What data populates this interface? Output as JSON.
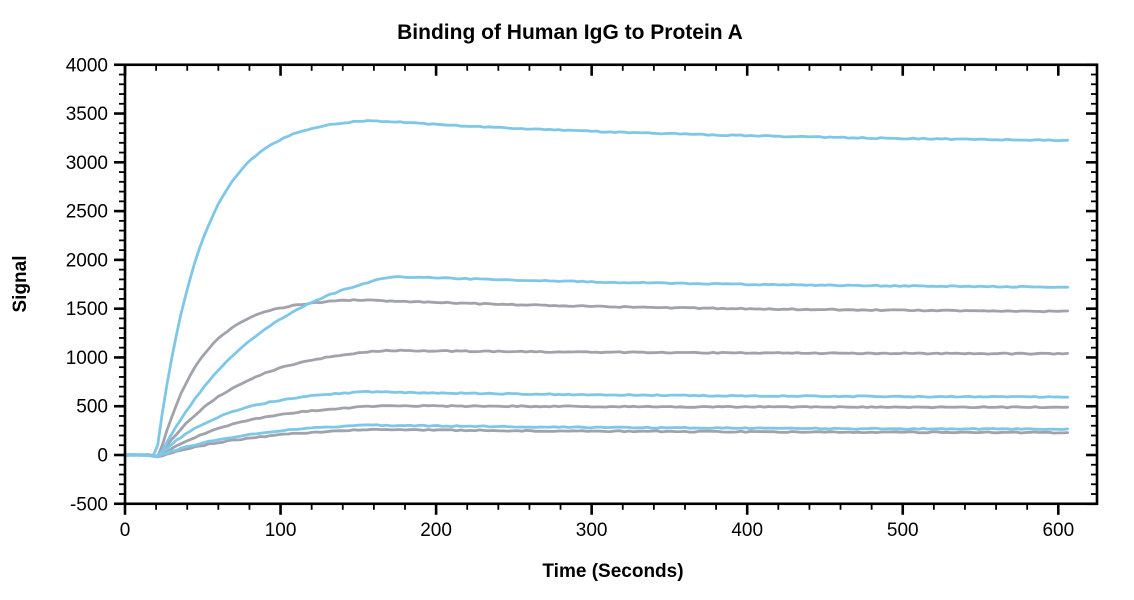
{
  "window": {
    "background_color": "#ffffff",
    "text_color": "#000000"
  },
  "chart_data": {
    "type": "line",
    "title": "Binding of Human IgG to Protein A",
    "xlabel": "Time (Seconds)",
    "ylabel": "Signal",
    "xlim": [
      0,
      625
    ],
    "ylim": [
      -500,
      4000
    ],
    "x_major_ticks": [
      0,
      100,
      200,
      300,
      400,
      500,
      600
    ],
    "x_minor_step": 20,
    "y_major_ticks": [
      -500,
      0,
      500,
      1000,
      1500,
      2000,
      2500,
      3000,
      3500,
      4000
    ],
    "y_minor_step": 100,
    "grid": false,
    "legend": null,
    "axis_color": "#000000",
    "series_colors": {
      "blue": "#7EC7E7",
      "gray": "#A0A3AB"
    },
    "curve_description": "Eight binding sensorgram traces: baseline at 0 until ~20 s, association rise to a peak near 150-170 s, then slow dissociation decay to 600 s",
    "series": [
      {
        "name": "curve-1-blue",
        "color": "blue",
        "hex": "#7EC7E7",
        "baseline": 0,
        "rise_start_s": 20,
        "k_assoc": 0.034,
        "peak_s": 158,
        "peak_signal": 3430,
        "end_s": 608,
        "end_signal": 3225
      },
      {
        "name": "curve-2-blue",
        "color": "blue",
        "hex": "#7EC7E7",
        "baseline": 0,
        "rise_start_s": 22,
        "k_assoc": 0.0145,
        "peak_s": 172,
        "peak_signal": 1830,
        "end_s": 608,
        "end_signal": 1722
      },
      {
        "name": "curve-3-gray",
        "color": "gray",
        "hex": "#A0A3AB",
        "baseline": 0,
        "rise_start_s": 22,
        "k_assoc": 0.036,
        "peak_s": 152,
        "peak_signal": 1590,
        "end_s": 608,
        "end_signal": 1472
      },
      {
        "name": "curve-4-gray",
        "color": "gray",
        "hex": "#A0A3AB",
        "baseline": 0,
        "rise_start_s": 22,
        "k_assoc": 0.02,
        "peak_s": 168,
        "peak_signal": 1072,
        "end_s": 608,
        "end_signal": 1038
      },
      {
        "name": "curve-5-blue",
        "color": "blue",
        "hex": "#7EC7E7",
        "baseline": 0,
        "rise_start_s": 21,
        "k_assoc": 0.022,
        "peak_s": 155,
        "peak_signal": 648,
        "end_s": 608,
        "end_signal": 594
      },
      {
        "name": "curve-6-gray",
        "color": "gray",
        "hex": "#A0A3AB",
        "baseline": 0,
        "rise_start_s": 22,
        "k_assoc": 0.019,
        "peak_s": 168,
        "peak_signal": 505,
        "end_s": 608,
        "end_signal": 489
      },
      {
        "name": "curve-7-blue",
        "color": "blue",
        "hex": "#7EC7E7",
        "baseline": 0,
        "rise_start_s": 21,
        "k_assoc": 0.017,
        "peak_s": 158,
        "peak_signal": 306,
        "end_s": 608,
        "end_signal": 265
      },
      {
        "name": "curve-8-gray",
        "color": "gray",
        "hex": "#A0A3AB",
        "baseline": 0,
        "rise_start_s": 22,
        "k_assoc": 0.016,
        "peak_s": 160,
        "peak_signal": 262,
        "end_s": 608,
        "end_signal": 230
      }
    ]
  }
}
